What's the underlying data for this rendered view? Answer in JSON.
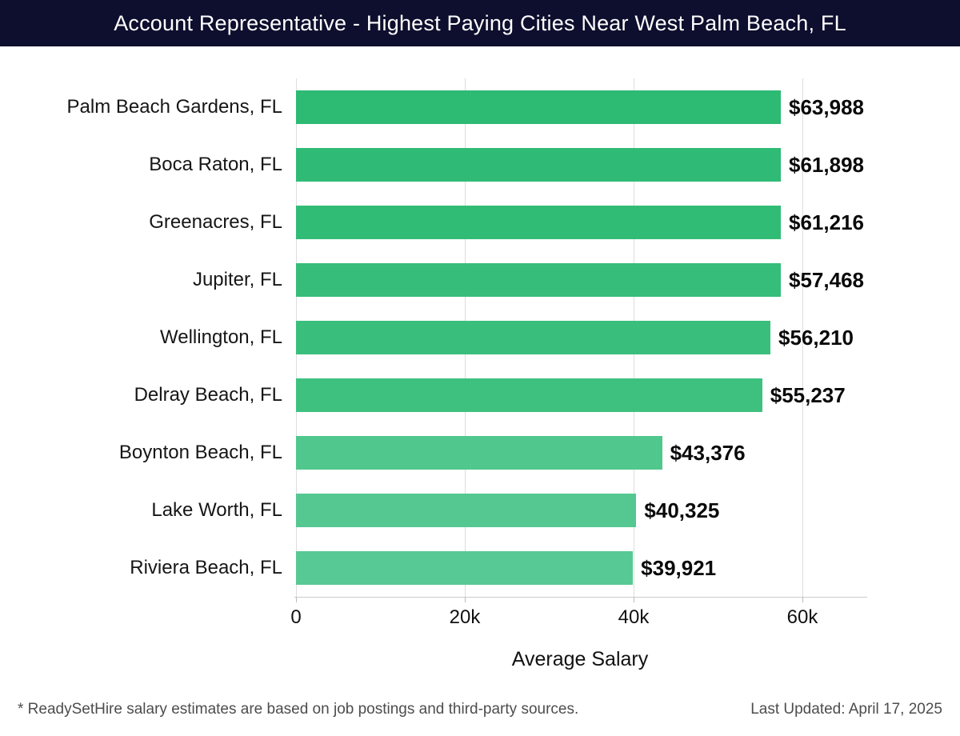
{
  "header": {
    "title": "Account Representative - Highest Paying Cities Near West Palm Beach, FL"
  },
  "chart_data": {
    "type": "bar",
    "orientation": "horizontal",
    "title": "Account Representative - Highest Paying Cities Near West Palm Beach, FL",
    "xlabel": "Average Salary",
    "ylabel": "",
    "xlim": [
      0,
      67300
    ],
    "grid": "vertical",
    "legend": "none",
    "xticks": [
      {
        "value": 0,
        "label": "0"
      },
      {
        "value": 20000,
        "label": "20k"
      },
      {
        "value": 40000,
        "label": "40k"
      },
      {
        "value": 60000,
        "label": "60k"
      }
    ],
    "bars": [
      {
        "label": "Palm Beach Gardens, FL",
        "value": 63988,
        "value_label": "$63,988",
        "color": "#2dba73"
      },
      {
        "label": "Boca Raton, FL",
        "value": 61898,
        "value_label": "$61,898",
        "color": "#2fbb75"
      },
      {
        "label": "Greenacres, FL",
        "value": 61216,
        "value_label": "$61,216",
        "color": "#31bc76"
      },
      {
        "label": "Jupiter, FL",
        "value": 57468,
        "value_label": "$57,468",
        "color": "#36bd79"
      },
      {
        "label": "Wellington, FL",
        "value": 56210,
        "value_label": "$56,210",
        "color": "#39bf7b"
      },
      {
        "label": "Delray Beach, FL",
        "value": 55237,
        "value_label": "$55,237",
        "color": "#3ec17f"
      },
      {
        "label": "Boynton Beach, FL",
        "value": 43376,
        "value_label": "$43,376",
        "color": "#50c78c"
      },
      {
        "label": "Lake Worth, FL",
        "value": 40325,
        "value_label": "$40,325",
        "color": "#55c892"
      },
      {
        "label": "Riviera Beach, FL",
        "value": 39921,
        "value_label": "$39,921",
        "color": "#57c995"
      }
    ]
  },
  "footer": {
    "note": "* ReadySetHire salary estimates are based on job postings and third-party sources.",
    "updated": "Last Updated: April 17, 2025"
  },
  "colors": {
    "header_bg": "#0e0e2e",
    "header_text": "#ffffff",
    "gridline": "#dddddd",
    "axis": "#cccccc",
    "category_text": "#161616",
    "value_text": "#0a0a0a",
    "footer_text": "#4d4d4d"
  }
}
